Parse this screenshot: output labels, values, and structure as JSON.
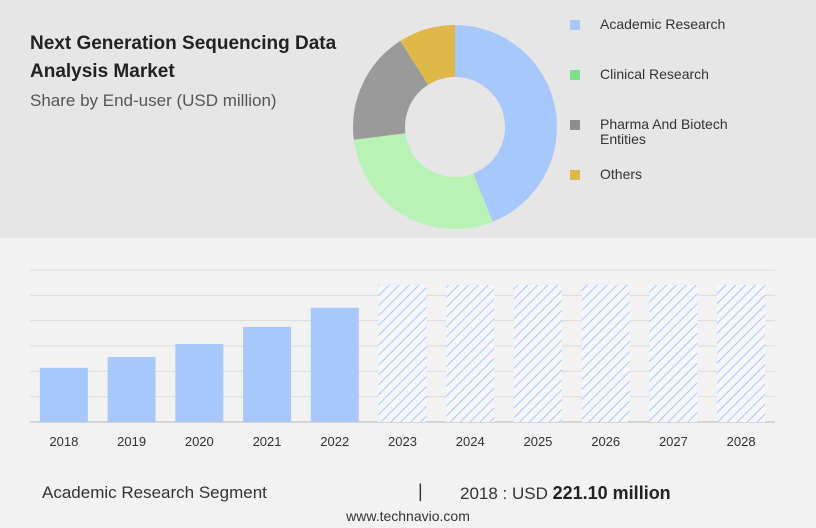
{
  "header": {
    "title": "Next Generation Sequencing Data Analysis Market",
    "subtitle": "Share by End-user (USD million)"
  },
  "legend": [
    {
      "label": "Academic Research",
      "color": "#a8c8fc"
    },
    {
      "label": "Clinical Research",
      "color": "#7fe08a"
    },
    {
      "label": "Pharma And Biotech Entities",
      "color": "#8c8c8c"
    },
    {
      "label": "Others",
      "color": "#e0b84a"
    }
  ],
  "chart_data": [
    {
      "type": "pie",
      "variant": "donut",
      "labels": [
        "Academic Research",
        "Clinical Research",
        "Pharma And Biotech Entities",
        "Others"
      ],
      "values": [
        44,
        29,
        18,
        9
      ],
      "colors": [
        "#a8c8fc",
        "#b8f2b6",
        "#9a9a9a",
        "#e0b84a"
      ]
    },
    {
      "type": "bar",
      "categories": [
        "2018",
        "2019",
        "2020",
        "2021",
        "2022",
        "2023",
        "2024",
        "2025",
        "2026",
        "2027",
        "2028"
      ],
      "values": [
        221.1,
        265,
        318,
        388,
        466,
        null,
        null,
        null,
        null,
        null,
        null
      ],
      "forecast_years": [
        "2023",
        "2024",
        "2025",
        "2026",
        "2027",
        "2028"
      ],
      "ylim": [
        0,
        620
      ],
      "grid": true,
      "bar_color": "#a8c8fc",
      "forecast_style": "hatched"
    }
  ],
  "footer": {
    "segment": "Academic Research Segment",
    "divider": "|",
    "value_prefix": "2018 : USD",
    "value": "221.10 million",
    "source": "www.technavio.com"
  }
}
